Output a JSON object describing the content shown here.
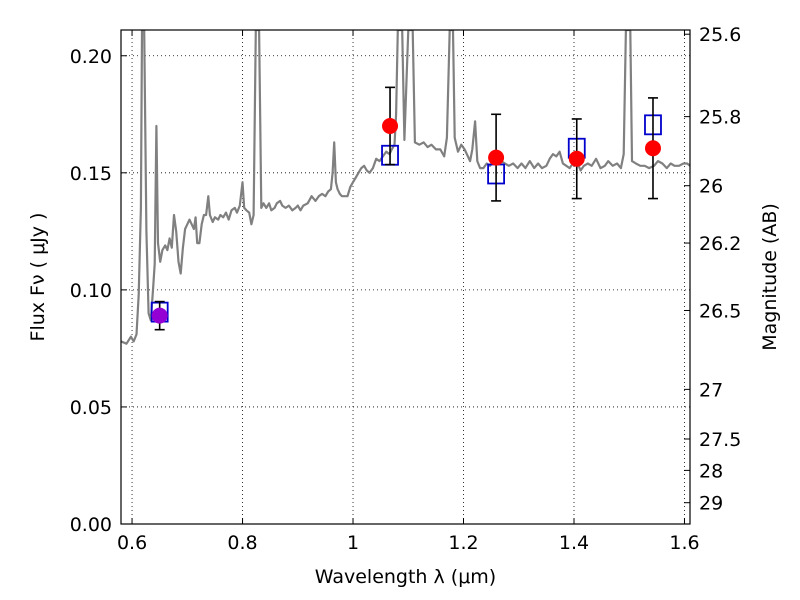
{
  "chart_data": {
    "type": "scatter",
    "xlabel": "Wavelength  λ (μm)",
    "ylabel": "Flux  Fν  ( μJy )",
    "y2label": "Magnitude (AB)",
    "xlim": [
      0.58,
      1.61
    ],
    "ylim": [
      0.0,
      0.211
    ],
    "grid": true,
    "grid_style": "dotted",
    "x_ticks": [
      0.6,
      0.8,
      1.0,
      1.2,
      1.4,
      1.6
    ],
    "x_tick_labels": [
      "0.6",
      "0.8",
      "1",
      "1.2",
      "1.4",
      "1.6"
    ],
    "y_ticks": [
      0.0,
      0.05,
      0.1,
      0.15,
      0.2
    ],
    "y_tick_labels": [
      "0.00",
      "0.05",
      "0.10",
      "0.15",
      "0.20"
    ],
    "y2_ticks": [
      {
        "label": "25.6",
        "flux": 0.2092
      },
      {
        "label": "25.8",
        "flux": 0.174
      },
      {
        "label": "26",
        "flux": 0.1445
      },
      {
        "label": "26.2",
        "flux": 0.12
      },
      {
        "label": "26.5",
        "flux": 0.0912
      },
      {
        "label": "27",
        "flux": 0.0575
      },
      {
        "label": "27.5",
        "flux": 0.0363
      },
      {
        "label": "28",
        "flux": 0.0229
      },
      {
        "label": "29",
        "flux": 0.0091
      }
    ],
    "series": [
      {
        "kind": "line",
        "color": "#808080",
        "points": [
          [
            0.58,
            0.078
          ],
          [
            0.59,
            0.077
          ],
          [
            0.598,
            0.08
          ],
          [
            0.603,
            0.078
          ],
          [
            0.608,
            0.081
          ],
          [
            0.612,
            0.098
          ],
          [
            0.616,
            0.135
          ],
          [
            0.618,
            0.211
          ],
          [
            0.622,
            0.211
          ],
          [
            0.626,
            0.125
          ],
          [
            0.63,
            0.09
          ],
          [
            0.634,
            0.087
          ],
          [
            0.638,
            0.1
          ],
          [
            0.641,
            0.111
          ],
          [
            0.644,
            0.17
          ],
          [
            0.647,
            0.12
          ],
          [
            0.651,
            0.112
          ],
          [
            0.655,
            0.117
          ],
          [
            0.66,
            0.119
          ],
          [
            0.664,
            0.117
          ],
          [
            0.668,
            0.122
          ],
          [
            0.672,
            0.118
          ],
          [
            0.676,
            0.132
          ],
          [
            0.68,
            0.125
          ],
          [
            0.684,
            0.112
          ],
          [
            0.688,
            0.107
          ],
          [
            0.692,
            0.118
          ],
          [
            0.696,
            0.126
          ],
          [
            0.7,
            0.128
          ],
          [
            0.704,
            0.13
          ],
          [
            0.708,
            0.128
          ],
          [
            0.712,
            0.126
          ],
          [
            0.715,
            0.131
          ],
          [
            0.718,
            0.12
          ],
          [
            0.722,
            0.12
          ],
          [
            0.726,
            0.128
          ],
          [
            0.73,
            0.132
          ],
          [
            0.734,
            0.132
          ],
          [
            0.738,
            0.14
          ],
          [
            0.741,
            0.132
          ],
          [
            0.746,
            0.129
          ],
          [
            0.75,
            0.131
          ],
          [
            0.756,
            0.13
          ],
          [
            0.76,
            0.132
          ],
          [
            0.765,
            0.131
          ],
          [
            0.77,
            0.133
          ],
          [
            0.775,
            0.13
          ],
          [
            0.78,
            0.134
          ],
          [
            0.786,
            0.135
          ],
          [
            0.79,
            0.133
          ],
          [
            0.795,
            0.136
          ],
          [
            0.8,
            0.146
          ],
          [
            0.803,
            0.135
          ],
          [
            0.807,
            0.134
          ],
          [
            0.812,
            0.133
          ],
          [
            0.816,
            0.128
          ],
          [
            0.82,
            0.132
          ],
          [
            0.824,
            0.211
          ],
          [
            0.83,
            0.211
          ],
          [
            0.834,
            0.135
          ],
          [
            0.838,
            0.137
          ],
          [
            0.843,
            0.135
          ],
          [
            0.848,
            0.137
          ],
          [
            0.852,
            0.134
          ],
          [
            0.858,
            0.135
          ],
          [
            0.862,
            0.137
          ],
          [
            0.868,
            0.138
          ],
          [
            0.872,
            0.136
          ],
          [
            0.878,
            0.135
          ],
          [
            0.884,
            0.136
          ],
          [
            0.89,
            0.134
          ],
          [
            0.896,
            0.135
          ],
          [
            0.9,
            0.136
          ],
          [
            0.905,
            0.134
          ],
          [
            0.91,
            0.136
          ],
          [
            0.918,
            0.137
          ],
          [
            0.925,
            0.14
          ],
          [
            0.932,
            0.138
          ],
          [
            0.938,
            0.14
          ],
          [
            0.944,
            0.141
          ],
          [
            0.95,
            0.14
          ],
          [
            0.955,
            0.142
          ],
          [
            0.96,
            0.143
          ],
          [
            0.963,
            0.15
          ],
          [
            0.966,
            0.163
          ],
          [
            0.969,
            0.146
          ],
          [
            0.972,
            0.143
          ],
          [
            0.976,
            0.141
          ],
          [
            0.98,
            0.14
          ],
          [
            0.985,
            0.14
          ],
          [
            0.99,
            0.14
          ],
          [
            0.995,
            0.144
          ],
          [
            1.0,
            0.146
          ],
          [
            1.005,
            0.148
          ],
          [
            1.01,
            0.15
          ],
          [
            1.015,
            0.152
          ],
          [
            1.02,
            0.153
          ],
          [
            1.025,
            0.151
          ],
          [
            1.03,
            0.15
          ],
          [
            1.036,
            0.152
          ],
          [
            1.042,
            0.156
          ],
          [
            1.048,
            0.155
          ],
          [
            1.054,
            0.157
          ],
          [
            1.06,
            0.159
          ],
          [
            1.066,
            0.158
          ],
          [
            1.07,
            0.16
          ],
          [
            1.075,
            0.162
          ],
          [
            1.078,
            0.175
          ],
          [
            1.081,
            0.211
          ],
          [
            1.089,
            0.211
          ],
          [
            1.093,
            0.164
          ],
          [
            1.1,
            0.211
          ],
          [
            1.108,
            0.211
          ],
          [
            1.112,
            0.163
          ],
          [
            1.12,
            0.162
          ],
          [
            1.128,
            0.163
          ],
          [
            1.135,
            0.161
          ],
          [
            1.142,
            0.162
          ],
          [
            1.15,
            0.16
          ],
          [
            1.158,
            0.16
          ],
          [
            1.165,
            0.157
          ],
          [
            1.17,
            0.165
          ],
          [
            1.175,
            0.211
          ],
          [
            1.181,
            0.211
          ],
          [
            1.184,
            0.165
          ],
          [
            1.19,
            0.159
          ],
          [
            1.196,
            0.162
          ],
          [
            1.202,
            0.16
          ],
          [
            1.208,
            0.157
          ],
          [
            1.212,
            0.155
          ],
          [
            1.216,
            0.16
          ],
          [
            1.221,
            0.172
          ],
          [
            1.225,
            0.155
          ],
          [
            1.23,
            0.152
          ],
          [
            1.236,
            0.152
          ],
          [
            1.242,
            0.154
          ],
          [
            1.248,
            0.153
          ],
          [
            1.255,
            0.155
          ],
          [
            1.262,
            0.156
          ],
          [
            1.268,
            0.155
          ],
          [
            1.275,
            0.154
          ],
          [
            1.282,
            0.153
          ],
          [
            1.29,
            0.154
          ],
          [
            1.298,
            0.152
          ],
          [
            1.305,
            0.154
          ],
          [
            1.312,
            0.152
          ],
          [
            1.32,
            0.155
          ],
          [
            1.328,
            0.152
          ],
          [
            1.335,
            0.154
          ],
          [
            1.342,
            0.152
          ],
          [
            1.35,
            0.153
          ],
          [
            1.356,
            0.156
          ],
          [
            1.362,
            0.158
          ],
          [
            1.368,
            0.157
          ],
          [
            1.374,
            0.159
          ],
          [
            1.38,
            0.154
          ],
          [
            1.386,
            0.153
          ],
          [
            1.392,
            0.152
          ],
          [
            1.398,
            0.154
          ],
          [
            1.405,
            0.155
          ],
          [
            1.412,
            0.151
          ],
          [
            1.418,
            0.153
          ],
          [
            1.425,
            0.154
          ],
          [
            1.432,
            0.153
          ],
          [
            1.44,
            0.156
          ],
          [
            1.448,
            0.152
          ],
          [
            1.456,
            0.153
          ],
          [
            1.462,
            0.155
          ],
          [
            1.47,
            0.153
          ],
          [
            1.478,
            0.154
          ],
          [
            1.485,
            0.152
          ],
          [
            1.49,
            0.158
          ],
          [
            1.494,
            0.211
          ],
          [
            1.502,
            0.211
          ],
          [
            1.505,
            0.155
          ],
          [
            1.512,
            0.154
          ],
          [
            1.52,
            0.153
          ],
          [
            1.528,
            0.153
          ],
          [
            1.536,
            0.152
          ],
          [
            1.545,
            0.153
          ],
          [
            1.552,
            0.155
          ],
          [
            1.56,
            0.154
          ],
          [
            1.568,
            0.152
          ],
          [
            1.575,
            0.154
          ],
          [
            1.582,
            0.153
          ],
          [
            1.59,
            0.153
          ],
          [
            1.598,
            0.154
          ],
          [
            1.605,
            0.154
          ],
          [
            1.61,
            0.153
          ]
        ]
      },
      {
        "kind": "squares",
        "edge_color": "#0000cc",
        "points": [
          [
            0.65,
            0.0905
          ],
          [
            1.067,
            0.1575
          ],
          [
            1.259,
            0.1495
          ],
          [
            1.405,
            0.1605
          ],
          [
            1.543,
            0.1705
          ]
        ]
      },
      {
        "kind": "errorbar-points",
        "color": "#ff0000",
        "first_point_color": "#9400d3",
        "points": [
          {
            "x": 0.65,
            "y": 0.089,
            "yerr": 0.006
          },
          {
            "x": 1.067,
            "y": 0.17,
            "yerr": 0.0165
          },
          {
            "x": 1.259,
            "y": 0.1565,
            "yerr": 0.0185
          },
          {
            "x": 1.405,
            "y": 0.156,
            "yerr": 0.017
          },
          {
            "x": 1.543,
            "y": 0.1605,
            "yerr": 0.0215
          }
        ]
      }
    ]
  }
}
